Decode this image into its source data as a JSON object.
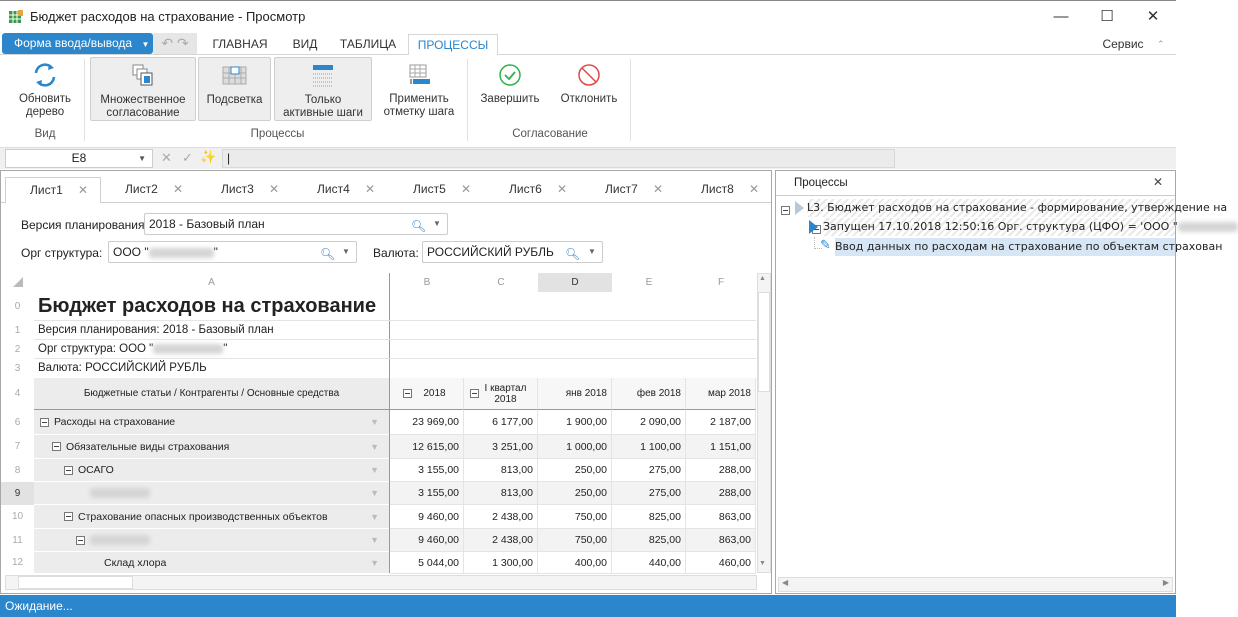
{
  "window": {
    "title": "Бюджет расходов на страхование - Просмотр",
    "icon": "spreadsheet-icon"
  },
  "menu": {
    "form_button": "Форма ввода/вывода",
    "tabs": [
      "ГЛАВНАЯ",
      "ВИД",
      "ТАБЛИЦА",
      "ПРОЦЕССЫ"
    ],
    "active_tab": "ПРОЦЕССЫ",
    "service": "Сервис"
  },
  "ribbon": {
    "buttons": [
      {
        "label1": "Обновить",
        "label2": "дерево",
        "icon": "refresh-icon"
      },
      {
        "label1": "Множественное",
        "label2": "согласование",
        "icon": "multiple-approval-icon",
        "pressed": true
      },
      {
        "label1": "Подсветка",
        "label2": "",
        "icon": "highlight-grid-icon",
        "pressed": true
      },
      {
        "label1": "Только",
        "label2": "активные шаги",
        "icon": "active-steps-icon",
        "pressed": true
      },
      {
        "label1": "Применить",
        "label2": "отметку шага",
        "icon": "apply-step-mark-icon"
      },
      {
        "label1": "Завершить",
        "label2": "",
        "icon": "check-circle-icon"
      },
      {
        "label1": "Отклонить",
        "label2": "",
        "icon": "reject-icon"
      }
    ],
    "groups": [
      "Вид",
      "Процессы",
      "Согласование"
    ],
    "colors": {
      "complete": "#2fb24c",
      "reject": "#e04848",
      "accent": "#2b86cc"
    }
  },
  "formula_bar": {
    "cell_ref": "E8",
    "value": "|"
  },
  "sheets": [
    "Лист1",
    "Лист2",
    "Лист3",
    "Лист4",
    "Лист5",
    "Лист6",
    "Лист7",
    "Лист8"
  ],
  "active_sheet": "Лист1",
  "params": {
    "version_label": "Версия планирования:",
    "version_value": "2018 - Базовый план",
    "org_label": "Орг структура:",
    "org_value": "ООО \"",
    "currency_label": "Валюта:",
    "currency_value": "РОССИЙСКИЙ РУБЛЬ"
  },
  "grid": {
    "columns": [
      "A",
      "B",
      "C",
      "D",
      "E",
      "F"
    ],
    "selected_column": "D",
    "title": "Бюджет расходов на страхование",
    "info": [
      "Версия планирования: 2018 - Базовый план",
      "Орг структура: ООО \"",
      "Валюта: РОССИЙСКИЙ РУБЛЬ"
    ],
    "info_row_numbers": [
      "0",
      "1",
      "2",
      "3"
    ],
    "header_row_number": "4",
    "header": {
      "a": "Бюджетные статьи / Контрагенты / Основные средства",
      "b": "2018",
      "c": "I квартал 2018",
      "d": "янв 2018",
      "e": "фев 2018",
      "f": "мар 2018"
    },
    "rows": [
      {
        "n": "6",
        "label": "Расходы на страхование",
        "level": 0,
        "minus": true,
        "values": [
          "23 969,00",
          "6 177,00",
          "1 900,00",
          "2 090,00",
          "2 187,00"
        ]
      },
      {
        "n": "7",
        "label": "Обязательные виды страхования",
        "level": 1,
        "minus": true,
        "values": [
          "12 615,00",
          "3 251,00",
          "1 000,00",
          "1 100,00",
          "1 151,00"
        ]
      },
      {
        "n": "8",
        "label": "ОСАГО",
        "level": 2,
        "minus": true,
        "values": [
          "3 155,00",
          "813,00",
          "250,00",
          "275,00",
          "288,00"
        ]
      },
      {
        "n": "9",
        "label": "",
        "level": 3,
        "minus": false,
        "blurred": true,
        "values": [
          "3 155,00",
          "813,00",
          "250,00",
          "275,00",
          "288,00"
        ]
      },
      {
        "n": "10",
        "label": "Страхование опасных производственных объектов",
        "level": 2,
        "minus": true,
        "values": [
          "9 460,00",
          "2 438,00",
          "750,00",
          "825,00",
          "863,00"
        ]
      },
      {
        "n": "11",
        "label": "",
        "level": 3,
        "minus": true,
        "blurred": true,
        "values": [
          "9 460,00",
          "2 438,00",
          "750,00",
          "825,00",
          "863,00"
        ]
      },
      {
        "n": "12",
        "label": "Склад хлора",
        "level": 4,
        "minus": false,
        "values": [
          "5 044,00",
          "1 300,00",
          "400,00",
          "440,00",
          "460,00"
        ]
      }
    ]
  },
  "processes": {
    "title": "Процессы",
    "items": [
      {
        "text": "L3. Бюджет расходов на страхование - формирование, утверждение на",
        "icon": "process-play-icon"
      },
      {
        "text": "Запущен 17.10.2018 12:50:16 Орг. структура (ЦФО) = 'ООО \"",
        "icon": "process-running-icon"
      },
      {
        "text": "Ввод данных по расходам на страхование по объектам страхован",
        "icon": "pencil-icon"
      }
    ]
  },
  "status": "Ожидание..."
}
